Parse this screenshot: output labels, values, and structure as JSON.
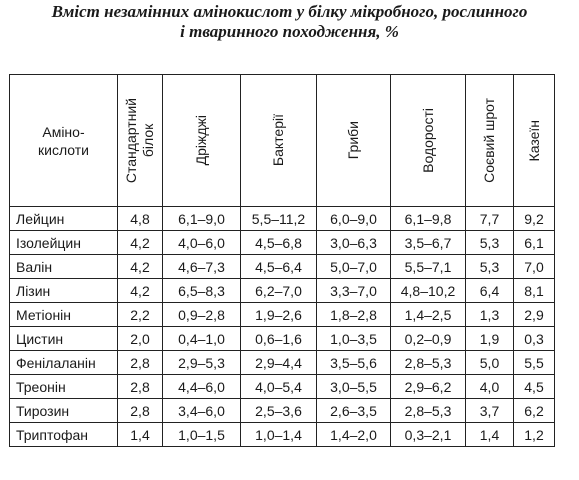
{
  "title": {
    "line1": "Вміст незамінних амінокислот у білку мікробного, рослинного",
    "line2": "і тваринного походження, %"
  },
  "table": {
    "corner_label": {
      "line1": "Аміно-",
      "line2": "кислоти"
    },
    "columns": [
      {
        "line1": "Стандартний",
        "line2": "білок"
      },
      {
        "line1": "Дріжджі",
        "line2": ""
      },
      {
        "line1": "Бактерії",
        "line2": ""
      },
      {
        "line1": "Гриби",
        "line2": ""
      },
      {
        "line1": "Водорості",
        "line2": ""
      },
      {
        "line1": "Соєвий шрот",
        "line2": ""
      },
      {
        "line1": "Казеїн",
        "line2": ""
      }
    ],
    "rows": [
      {
        "name": "Лейцин",
        "values": [
          "4,8",
          "6,1–9,0",
          "5,5–11,2",
          "6,0–9,0",
          "6,1–9,8",
          "7,7",
          "9,2"
        ]
      },
      {
        "name": "Ізолейцин",
        "values": [
          "4,2",
          "4,0–6,0",
          "4,5–6,8",
          "3,0–6,3",
          "3,5–6,7",
          "5,3",
          "6,1"
        ]
      },
      {
        "name": "Валін",
        "values": [
          "4,2",
          "4,6–7,3",
          "4,5–6,4",
          "5,0–7,0",
          "5,5–7,1",
          "5,3",
          "7,0"
        ]
      },
      {
        "name": "Лізин",
        "values": [
          "4,2",
          "6,5–8,3",
          "6,2–7,0",
          "3,3–7,0",
          "4,8–10,2",
          "6,4",
          "8,1"
        ]
      },
      {
        "name": "Метіонін",
        "values": [
          "2,2",
          "0,9–2,8",
          "1,9–2,6",
          "1,8–2,8",
          "1,4–2,5",
          "1,3",
          "2,9"
        ]
      },
      {
        "name": "Цистин",
        "values": [
          "2,0",
          "0,4–1,0",
          "0,6–1,6",
          "1,0–3,5",
          "0,2–0,9",
          "1,9",
          "0,3"
        ]
      },
      {
        "name": "Фенілаланін",
        "values": [
          "2,8",
          "2,9–5,3",
          "2,9–4,4",
          "3,5–5,6",
          "2,8–5,3",
          "5,0",
          "5,5"
        ]
      },
      {
        "name": "Треонін",
        "values": [
          "2,8",
          "4,4–6,0",
          "4,0–5,4",
          "3,0–5,5",
          "2,9–6,2",
          "4,0",
          "4,5"
        ]
      },
      {
        "name": "Тирозин",
        "values": [
          "2,8",
          "3,4–6,0",
          "2,5–3,6",
          "2,6–3,5",
          "2,8–5,3",
          "3,7",
          "6,2"
        ]
      },
      {
        "name": "Триптофан",
        "values": [
          "1,4",
          "1,0–1,5",
          "1,0–1,4",
          "1,4–2,0",
          "0,3–2,1",
          "1,4",
          "1,2"
        ]
      }
    ]
  }
}
